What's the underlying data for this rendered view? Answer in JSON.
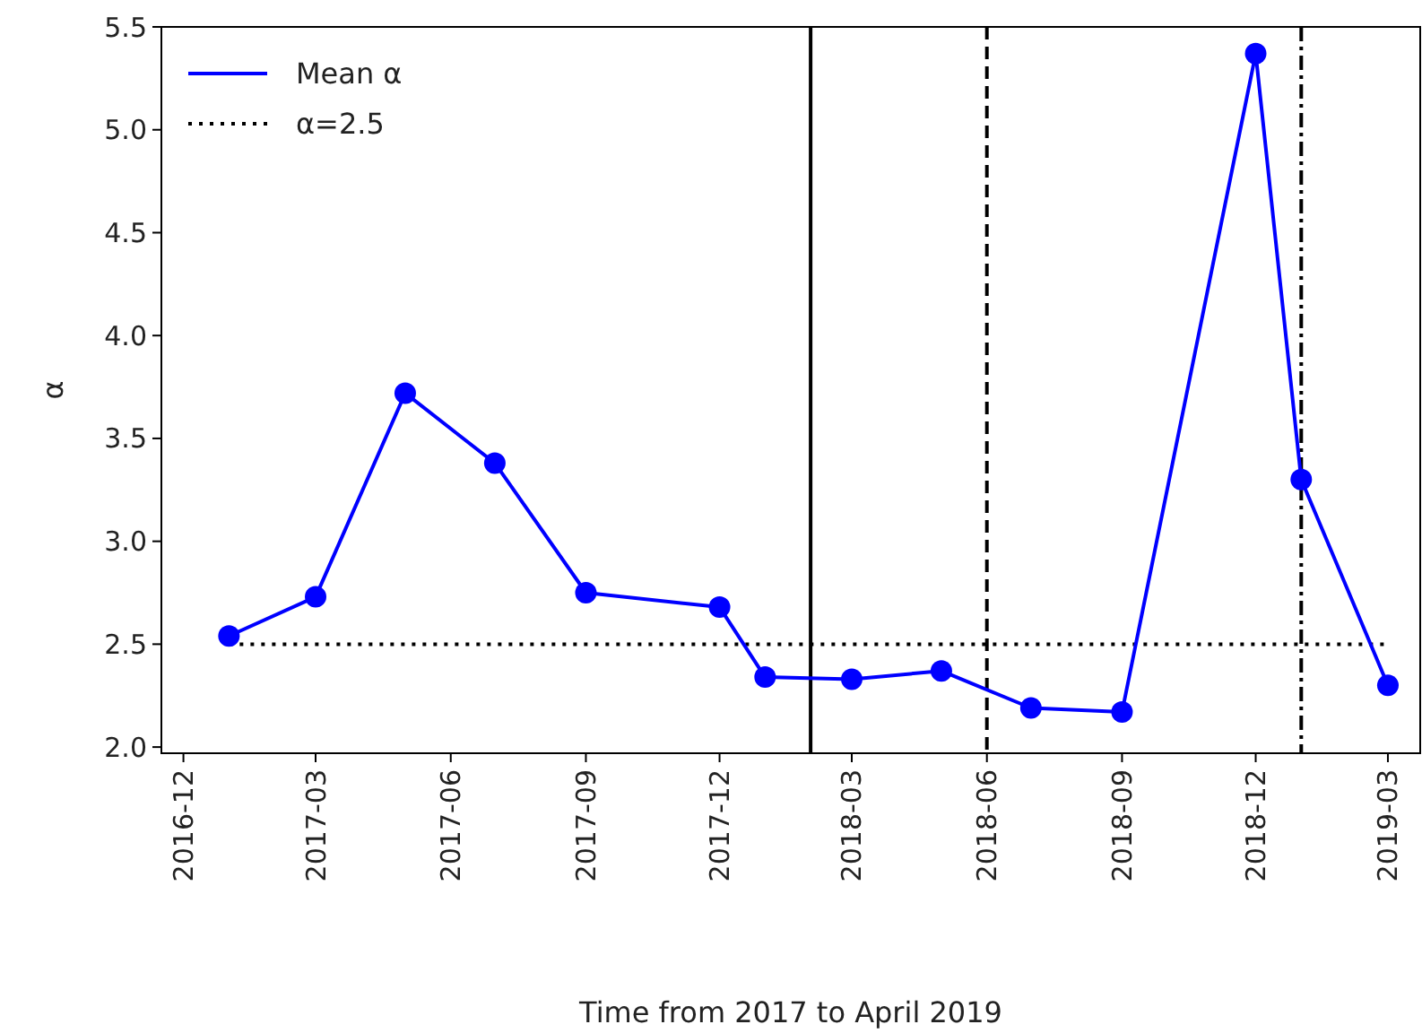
{
  "chart_data": {
    "type": "line",
    "xlabel": "Time from 2017 to April 2019",
    "ylabel": "α",
    "x": [
      "2017-01",
      "2017-03",
      "2017-05",
      "2017-07",
      "2017-09",
      "2017-12",
      "2018-01",
      "2018-03",
      "2018-05",
      "2018-07",
      "2018-09",
      "2018-12",
      "2019-01",
      "2019-03"
    ],
    "series": [
      {
        "name": "Mean α",
        "color": "#0000ff",
        "values": [
          2.54,
          2.73,
          3.72,
          3.38,
          2.75,
          2.68,
          2.34,
          2.33,
          2.37,
          2.19,
          2.17,
          5.37,
          3.3,
          2.3
        ]
      }
    ],
    "xlim": [
      "2016-11-16",
      "2019-03-23"
    ],
    "xticks": [
      "2016-12",
      "2017-03",
      "2017-06",
      "2017-09",
      "2017-12",
      "2018-03",
      "2018-06",
      "2018-09",
      "2018-12",
      "2019-03"
    ],
    "ylim": [
      1.97,
      5.5
    ],
    "yticks": [
      {
        "value": 2,
        "label": "2.0"
      },
      2.5,
      {
        "value": 3,
        "label": "3.0"
      },
      3.5,
      {
        "value": 4,
        "label": "4.0"
      },
      4.5,
      {
        "value": 5,
        "label": "5.0"
      },
      5.5
    ],
    "ref_lines": [
      {
        "axis": "y",
        "value": 2.5,
        "label": "α=2.5",
        "color": "#000000",
        "line_style": "dotted"
      },
      {
        "axis": "x",
        "value": "2018-02",
        "color": "#000000",
        "line_style": "solid"
      },
      {
        "axis": "x",
        "value": "2018-06",
        "color": "#000000",
        "line_style": "dashed"
      },
      {
        "axis": "x",
        "value": "2019-01",
        "color": "#000000",
        "line_style": "dashdot"
      }
    ],
    "legend": "top left",
    "marker": "circle",
    "line_style": "solid",
    "grid": false
  }
}
